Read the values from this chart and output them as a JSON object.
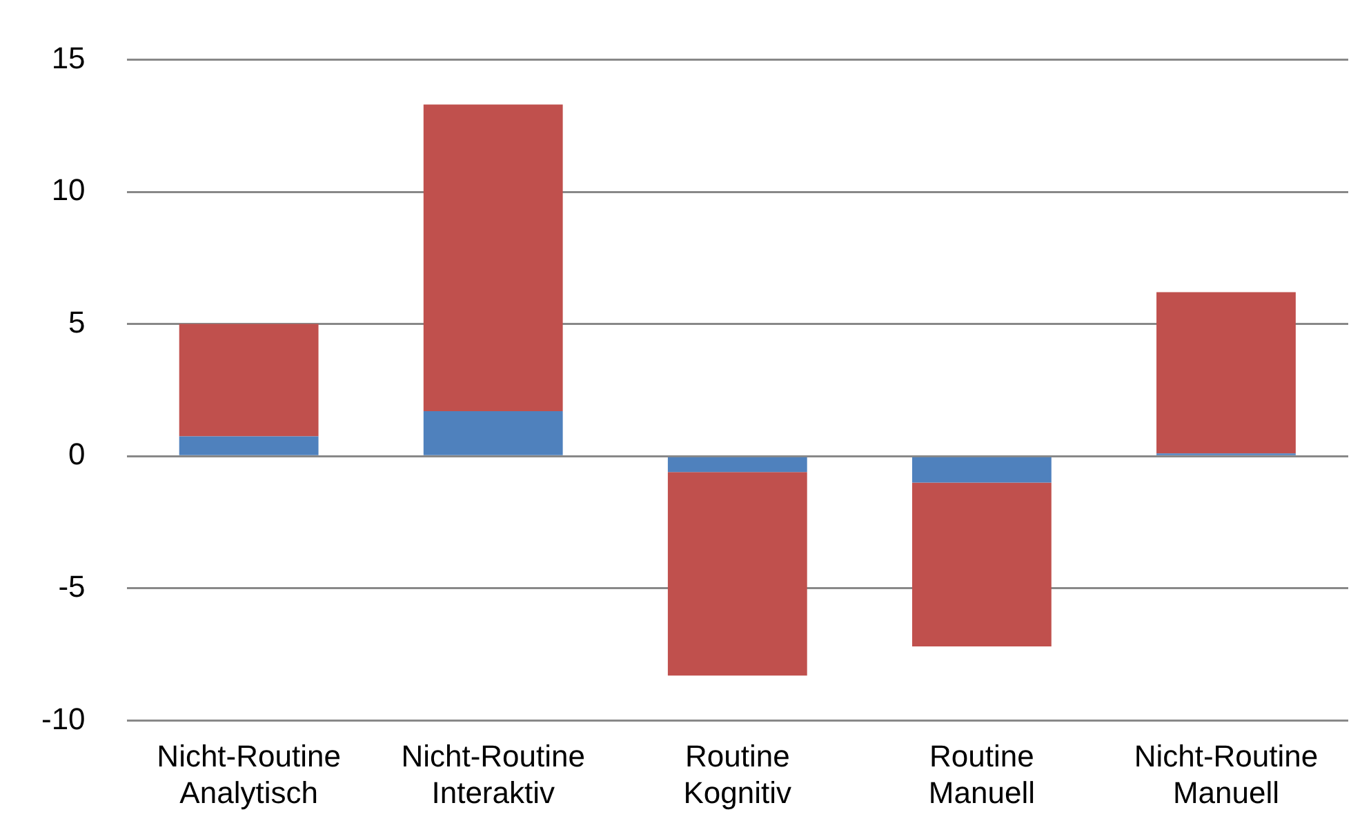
{
  "chart_data": {
    "type": "bar",
    "stacked": true,
    "categories": [
      "Nicht-Routine Analytisch",
      "Nicht-Routine Interaktiv",
      "Routine Kognitiv",
      "Routine Manuell",
      "Nicht-Routine Manuell"
    ],
    "series": [
      {
        "color": "#4f81bd",
        "values": [
          0.75,
          1.7,
          -0.6,
          -1.0,
          0.1
        ]
      },
      {
        "color": "#c0504d",
        "values": [
          4.25,
          11.6,
          -7.7,
          -6.2,
          6.1
        ]
      }
    ],
    "ylim": [
      -10,
      15
    ],
    "yticks": [
      -10,
      -5,
      0,
      5,
      10,
      15
    ],
    "grid": "y",
    "legend": false
  }
}
